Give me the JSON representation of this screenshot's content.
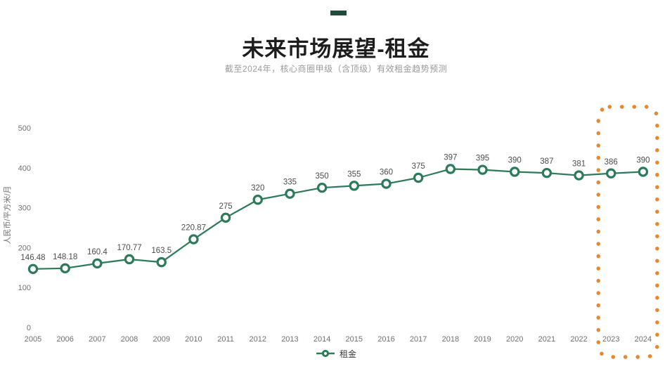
{
  "chart_data": {
    "type": "line",
    "title": "未来市场展望-租金",
    "subtitle": "截至2024年，核心商圈甲级（含顶级）有效租金趋势预测",
    "categories": [
      "2005",
      "2006",
      "2007",
      "2008",
      "2009",
      "2010",
      "2011",
      "2012",
      "2013",
      "2014",
      "2015",
      "2016",
      "2017",
      "2018",
      "2019",
      "2020",
      "2021",
      "2022",
      "2023",
      "2024"
    ],
    "series": [
      {
        "name": "租金",
        "values": [
          146.48,
          148.18,
          160.4,
          170.77,
          163.5,
          220.87,
          275,
          320,
          335,
          350,
          355,
          360,
          375,
          397,
          395,
          390,
          387,
          381,
          386,
          390
        ],
        "labels": [
          "146.48",
          "148.18",
          "160.4",
          "170.77",
          "163.5",
          "220.87",
          "275",
          "320",
          "335",
          "350",
          "355",
          "360",
          "375",
          "397",
          "395",
          "390",
          "387",
          "381",
          "386",
          "390"
        ],
        "color": "#2b7a58",
        "marker": "donut-circle"
      }
    ],
    "xlabel": "",
    "ylabel": "人民币/平方米/月",
    "ylim": [
      0,
      500
    ],
    "yticks": [
      0,
      100,
      200,
      300,
      400,
      500
    ],
    "grid": false,
    "legend_position": "bottom-center",
    "highlight_box": {
      "from": "2023",
      "to": "2024",
      "style": "dotted",
      "shape": "rounded-rect",
      "color": "#e8872e"
    },
    "colors": {
      "accent_dash": "#1d4e3b",
      "axis_text": "#6f6f6f",
      "value_label_text": "#4c4c4c",
      "title_text": "#1d1d1d",
      "subtitle_text": "#9b9b9b"
    }
  }
}
